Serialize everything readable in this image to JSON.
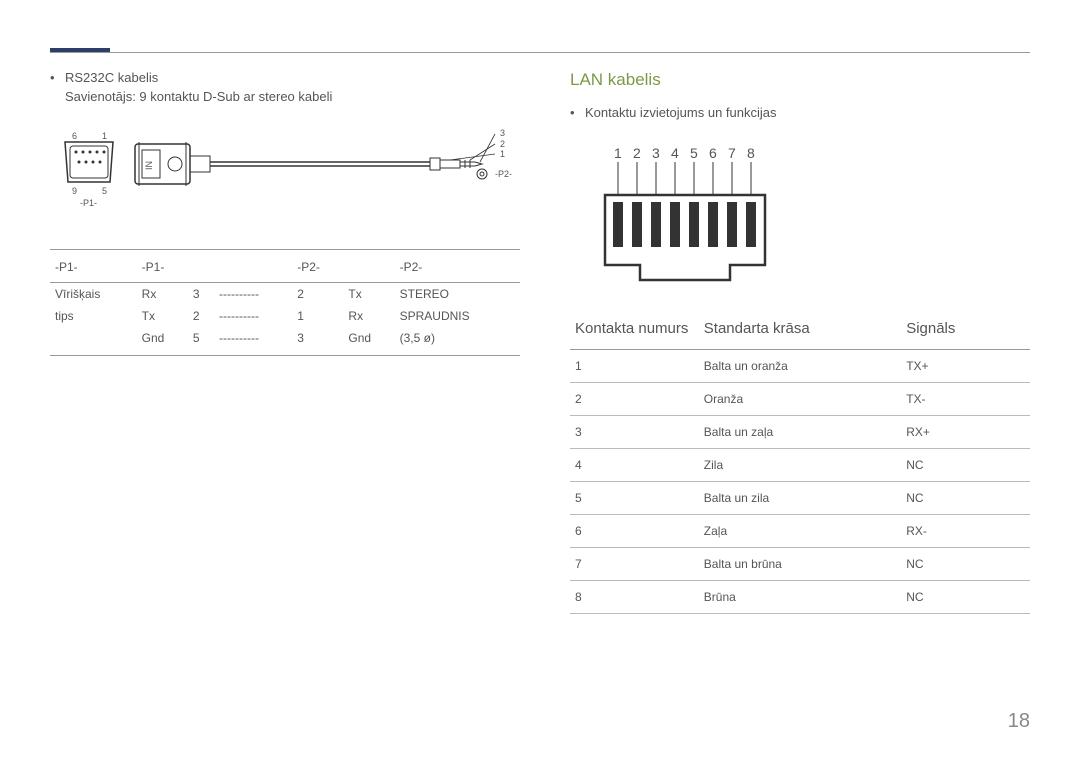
{
  "page_number": "18",
  "left": {
    "bullet": "RS232C kabelis",
    "subtext": "Savienotājs: 9 kontaktu D-Sub ar stereo kabeli",
    "diagram": {
      "p1_top_left": "6",
      "p1_top_right": "1",
      "p1_bot_left": "9",
      "p1_bot_right": "5",
      "p1_label": "-P1-",
      "in_label": "IN",
      "p2_3": "3",
      "p2_2": "2",
      "p2_1": "1",
      "p2_label": "-P2-"
    },
    "table": {
      "headers": [
        "-P1-",
        "-P1-",
        "",
        "",
        "-P2-",
        "",
        "-P2-"
      ],
      "rows": [
        [
          "Vīrišķais",
          "Rx",
          "3",
          "----------",
          "2",
          "Tx",
          "STEREO"
        ],
        [
          "tips",
          "Tx",
          "2",
          "----------",
          "1",
          "Rx",
          "SPRAUDNIS"
        ],
        [
          "",
          "Gnd",
          "5",
          "----------",
          "3",
          "Gnd",
          "(3,5 ø)"
        ]
      ]
    }
  },
  "right": {
    "title": "LAN kabelis",
    "bullet": "Kontaktu izvietojums un funkcijas",
    "pins": [
      "1",
      "2",
      "3",
      "4",
      "5",
      "6",
      "7",
      "8"
    ],
    "table": {
      "headers": [
        "Kontakta numurs",
        "Standarta krāsa",
        "Signāls"
      ],
      "rows": [
        [
          "1",
          "Balta un oranža",
          "TX+"
        ],
        [
          "2",
          "Oranža",
          "TX-"
        ],
        [
          "3",
          "Balta un zaļa",
          "RX+"
        ],
        [
          "4",
          "Zila",
          "NC"
        ],
        [
          "5",
          "Balta un zila",
          "NC"
        ],
        [
          "6",
          "Zaļa",
          "RX-"
        ],
        [
          "7",
          "Balta un brūna",
          "NC"
        ],
        [
          "8",
          "Brūna",
          "NC"
        ]
      ]
    }
  }
}
